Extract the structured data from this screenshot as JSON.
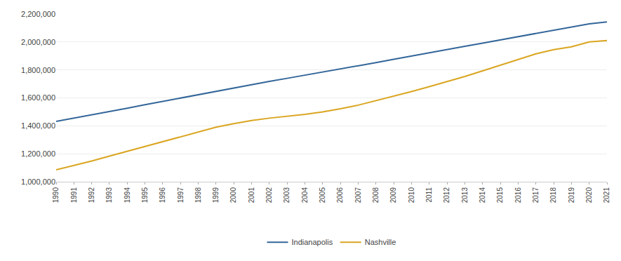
{
  "chart_data": {
    "type": "line",
    "x": [
      1990,
      1991,
      1992,
      1993,
      1994,
      1995,
      1996,
      1997,
      1998,
      1999,
      2000,
      2001,
      2002,
      2003,
      2004,
      2005,
      2006,
      2007,
      2008,
      2009,
      2010,
      2011,
      2012,
      2013,
      2014,
      2015,
      2016,
      2017,
      2018,
      2019,
      2020,
      2021
    ],
    "series": [
      {
        "name": "Indianapolis",
        "color": "#336699",
        "values": [
          1432000,
          1455000,
          1478000,
          1502000,
          1526000,
          1551000,
          1575000,
          1600000,
          1624000,
          1648000,
          1672000,
          1696000,
          1718000,
          1740000,
          1762000,
          1784000,
          1806000,
          1828000,
          1852000,
          1876000,
          1900000,
          1923000,
          1946000,
          1969000,
          1992000,
          2015000,
          2038000,
          2062000,
          2085000,
          2110000,
          2130000,
          2143000
        ]
      },
      {
        "name": "Nashville",
        "color": "#DAA520",
        "values": [
          1085000,
          1115000,
          1148000,
          1183000,
          1218000,
          1253000,
          1288000,
          1323000,
          1358000,
          1390000,
          1415000,
          1438000,
          1455000,
          1468000,
          1482000,
          1500000,
          1522000,
          1548000,
          1580000,
          1615000,
          1645000,
          1680000,
          1715000,
          1753000,
          1793000,
          1835000,
          1875000,
          1915000,
          1945000,
          1965000,
          2000000,
          2010000
        ]
      }
    ],
    "xlim": [
      1990,
      2021
    ],
    "xticks": [
      1990,
      1991,
      1992,
      1993,
      1994,
      1995,
      1996,
      1997,
      1998,
      1999,
      2000,
      2001,
      2002,
      2003,
      2004,
      2005,
      2006,
      2007,
      2008,
      2009,
      2010,
      2011,
      2012,
      2013,
      2014,
      2015,
      2016,
      2017,
      2018,
      2019,
      2020,
      2021
    ],
    "ylim": [
      1000000,
      2200000
    ],
    "yticks": [
      {
        "value": 1000000,
        "label": "1,000,000"
      },
      {
        "value": 1200000,
        "label": "1,200,000"
      },
      {
        "value": 1400000,
        "label": "1,400,000"
      },
      {
        "value": 1600000,
        "label": "1,600,000"
      },
      {
        "value": 1800000,
        "label": "1,800,000"
      },
      {
        "value": 2000000,
        "label": "2,000,000"
      },
      {
        "value": 2200000,
        "label": "2,200,000"
      }
    ],
    "grid": true,
    "legend": "bottom"
  }
}
